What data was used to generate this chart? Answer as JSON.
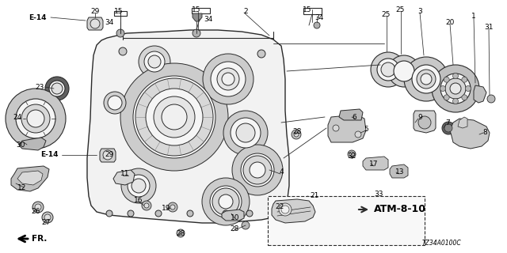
{
  "bg_color": "#ffffff",
  "diagram_code": "TZ34A0100C",
  "atm_label": "ATM-8-10",
  "gray": "#2a2a2a",
  "light_gray": "#b0b0b0",
  "mid_gray": "#888888",
  "fig_w": 6.4,
  "fig_h": 3.2,
  "dpi": 100,
  "labels": [
    [
      "E-14",
      47,
      22,
      true
    ],
    [
      "29",
      120,
      14,
      false
    ],
    [
      "15",
      150,
      14,
      false
    ],
    [
      "34",
      138,
      28,
      false
    ],
    [
      "15",
      248,
      12,
      false
    ],
    [
      "34",
      263,
      24,
      false
    ],
    [
      "2",
      310,
      14,
      false
    ],
    [
      "15",
      388,
      12,
      false
    ],
    [
      "34",
      403,
      22,
      false
    ],
    [
      "25",
      487,
      18,
      false
    ],
    [
      "25",
      505,
      12,
      false
    ],
    [
      "3",
      530,
      14,
      false
    ],
    [
      "20",
      568,
      28,
      false
    ],
    [
      "1",
      598,
      20,
      false
    ],
    [
      "31",
      617,
      34,
      false
    ],
    [
      "23",
      50,
      110,
      false
    ],
    [
      "24",
      22,
      148,
      false
    ],
    [
      "30",
      26,
      183,
      false
    ],
    [
      "E-14",
      62,
      196,
      true
    ],
    [
      "29",
      138,
      196,
      false
    ],
    [
      "12",
      28,
      237,
      false
    ],
    [
      "11",
      158,
      220,
      false
    ],
    [
      "28",
      375,
      166,
      false
    ],
    [
      "6",
      447,
      148,
      false
    ],
    [
      "5",
      462,
      163,
      false
    ],
    [
      "9",
      530,
      148,
      false
    ],
    [
      "7",
      565,
      155,
      false
    ],
    [
      "8",
      612,
      167,
      false
    ],
    [
      "32",
      444,
      198,
      false
    ],
    [
      "17",
      472,
      208,
      false
    ],
    [
      "13",
      505,
      218,
      false
    ],
    [
      "4",
      355,
      218,
      false
    ],
    [
      "21",
      397,
      248,
      false
    ],
    [
      "22",
      353,
      261,
      false
    ],
    [
      "16",
      175,
      254,
      false
    ],
    [
      "19",
      210,
      264,
      false
    ],
    [
      "10",
      297,
      275,
      false
    ],
    [
      "26",
      45,
      267,
      false
    ],
    [
      "27",
      58,
      282,
      false
    ],
    [
      "28",
      296,
      290,
      false
    ],
    [
      "28",
      228,
      296,
      false
    ],
    [
      "33",
      478,
      246,
      false
    ]
  ]
}
